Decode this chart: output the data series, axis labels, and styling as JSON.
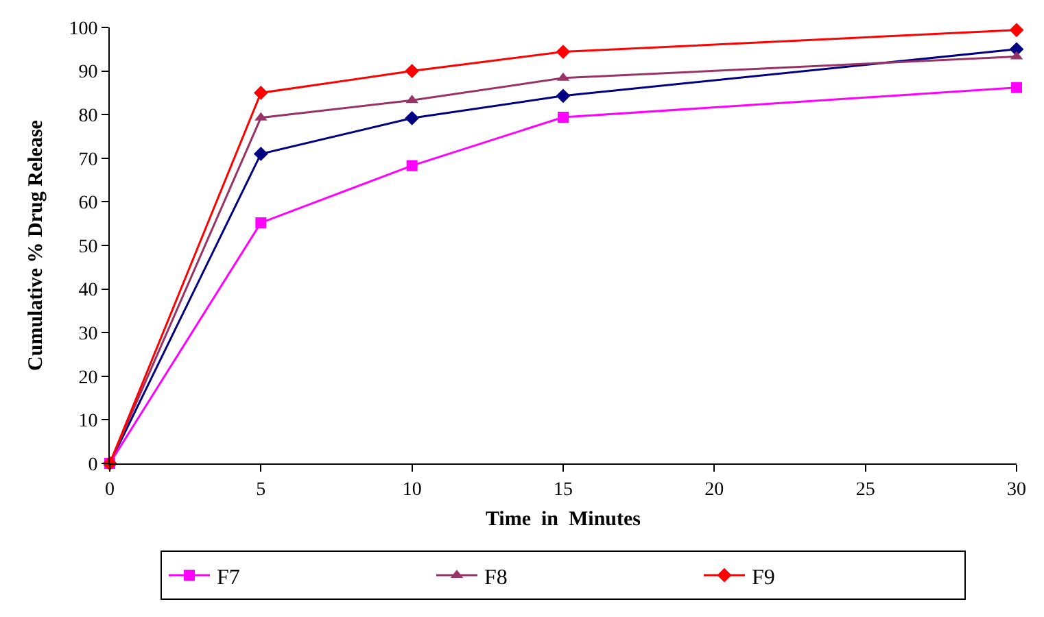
{
  "chart_data": {
    "type": "line",
    "xlabel": "Time  in  Minutes",
    "ylabel": "Cumulative % Drug Release",
    "x": [
      0,
      5,
      10,
      15,
      30
    ],
    "series": [
      {
        "color": "#000080",
        "marker": "diamond",
        "values": [
          0,
          71,
          79.2,
          84.3,
          95
        ]
      },
      {
        "name": "F7",
        "color": "#ff00ff",
        "marker": "square",
        "values": [
          0,
          55.2,
          68.3,
          79.4,
          86.2
        ]
      },
      {
        "name": "F8",
        "color": "#993366",
        "marker": "triangle",
        "values": [
          0,
          79.3,
          83.3,
          88.4,
          93.3
        ]
      },
      {
        "name": "F9",
        "color": "#ff0000",
        "marker": "diamond",
        "values": [
          0,
          85,
          90,
          94.4,
          99.4
        ]
      }
    ],
    "xlim": [
      0,
      30
    ],
    "xticks": [
      0,
      5,
      10,
      15,
      20,
      25,
      30
    ],
    "ylim": [
      0,
      100
    ],
    "yticks": [
      0,
      10,
      20,
      30,
      40,
      50,
      60,
      70,
      80,
      90,
      100
    ],
    "legend": "bottom",
    "line_style": "solid"
  }
}
